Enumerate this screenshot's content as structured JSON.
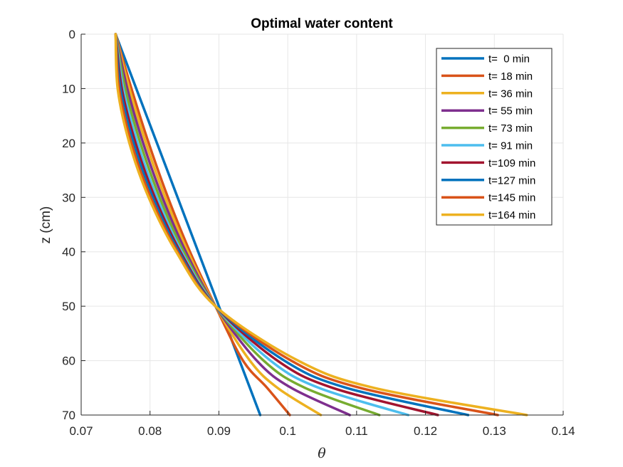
{
  "chart_data": {
    "type": "line",
    "title": "Optimal water content",
    "xlabel": "θ",
    "ylabel": "z (cm)",
    "xlim": [
      0.07,
      0.14
    ],
    "ylim": [
      0,
      70
    ],
    "y_reversed": true,
    "grid": true,
    "legend_position": "top-right",
    "x_ticks": [
      0.07,
      0.08,
      0.09,
      0.1,
      0.11,
      0.12,
      0.13,
      0.14
    ],
    "x_tick_labels": [
      "0.07",
      "0.08",
      "0.09",
      "0.1",
      "0.11",
      "0.12",
      "0.13",
      "0.14"
    ],
    "y_ticks": [
      0,
      10,
      20,
      30,
      40,
      50,
      60,
      70
    ],
    "y_tick_labels": [
      "0",
      "10",
      "20",
      "30",
      "40",
      "50",
      "60",
      "70"
    ],
    "series": [
      {
        "name": "t=  0 min",
        "color": "#0072BD",
        "points": [
          [
            0.075,
            0
          ],
          [
            0.078,
            10
          ],
          [
            0.081,
            20
          ],
          [
            0.084,
            30
          ],
          [
            0.087,
            40
          ],
          [
            0.09,
            50
          ],
          [
            0.093,
            60
          ],
          [
            0.096,
            70
          ]
        ]
      },
      {
        "name": "t= 18 min",
        "color": "#D95319",
        "points": [
          [
            0.075,
            0
          ],
          [
            0.0773,
            10
          ],
          [
            0.0798,
            20
          ],
          [
            0.0826,
            30
          ],
          [
            0.0858,
            40
          ],
          [
            0.0895,
            50
          ],
          [
            0.0935,
            60
          ],
          [
            0.097,
            65
          ],
          [
            0.1003,
            70
          ]
        ]
      },
      {
        "name": "t= 36 min",
        "color": "#EDB120",
        "points": [
          [
            0.075,
            0
          ],
          [
            0.077,
            10
          ],
          [
            0.0794,
            20
          ],
          [
            0.0822,
            30
          ],
          [
            0.0855,
            40
          ],
          [
            0.0895,
            50
          ],
          [
            0.0945,
            60
          ],
          [
            0.0985,
            65
          ],
          [
            0.1048,
            70
          ]
        ]
      },
      {
        "name": "t= 55 min",
        "color": "#7E2F8E",
        "points": [
          [
            0.075,
            0
          ],
          [
            0.0767,
            10
          ],
          [
            0.079,
            20
          ],
          [
            0.0818,
            30
          ],
          [
            0.0852,
            40
          ],
          [
            0.0895,
            50
          ],
          [
            0.0955,
            60
          ],
          [
            0.1005,
            65
          ],
          [
            0.109,
            70
          ]
        ]
      },
      {
        "name": "t= 73 min",
        "color": "#77AC30",
        "points": [
          [
            0.075,
            0
          ],
          [
            0.0764,
            10
          ],
          [
            0.0786,
            20
          ],
          [
            0.0814,
            30
          ],
          [
            0.0849,
            40
          ],
          [
            0.0895,
            50
          ],
          [
            0.0965,
            60
          ],
          [
            0.1025,
            65
          ],
          [
            0.1133,
            70
          ]
        ]
      },
      {
        "name": "t= 91 min",
        "color": "#4DBEEE",
        "points": [
          [
            0.075,
            0
          ],
          [
            0.0761,
            10
          ],
          [
            0.0782,
            20
          ],
          [
            0.081,
            30
          ],
          [
            0.0846,
            40
          ],
          [
            0.0895,
            50
          ],
          [
            0.0975,
            60
          ],
          [
            0.1045,
            65
          ],
          [
            0.1175,
            70
          ]
        ]
      },
      {
        "name": "t=109 min",
        "color": "#A2142F",
        "points": [
          [
            0.075,
            0
          ],
          [
            0.0759,
            10
          ],
          [
            0.0779,
            20
          ],
          [
            0.0807,
            30
          ],
          [
            0.0844,
            40
          ],
          [
            0.0895,
            50
          ],
          [
            0.0985,
            60
          ],
          [
            0.1065,
            65
          ],
          [
            0.1218,
            70
          ]
        ]
      },
      {
        "name": "t=127 min",
        "color": "#0072BD",
        "points": [
          [
            0.075,
            0
          ],
          [
            0.0757,
            10
          ],
          [
            0.0776,
            20
          ],
          [
            0.0804,
            30
          ],
          [
            0.0842,
            40
          ],
          [
            0.0895,
            50
          ],
          [
            0.0995,
            60
          ],
          [
            0.1085,
            65
          ],
          [
            0.1262,
            70
          ]
        ]
      },
      {
        "name": "t=145 min",
        "color": "#D95319",
        "points": [
          [
            0.075,
            0
          ],
          [
            0.0755,
            10
          ],
          [
            0.0773,
            20
          ],
          [
            0.0801,
            30
          ],
          [
            0.084,
            40
          ],
          [
            0.0895,
            50
          ],
          [
            0.1005,
            60
          ],
          [
            0.1105,
            65
          ],
          [
            0.1305,
            70
          ]
        ]
      },
      {
        "name": "t=164 min",
        "color": "#EDB120",
        "points": [
          [
            0.075,
            0
          ],
          [
            0.0753,
            10
          ],
          [
            0.077,
            20
          ],
          [
            0.0798,
            30
          ],
          [
            0.0838,
            40
          ],
          [
            0.0895,
            50
          ],
          [
            0.1015,
            60
          ],
          [
            0.1125,
            65
          ],
          [
            0.1347,
            70
          ]
        ]
      }
    ]
  }
}
